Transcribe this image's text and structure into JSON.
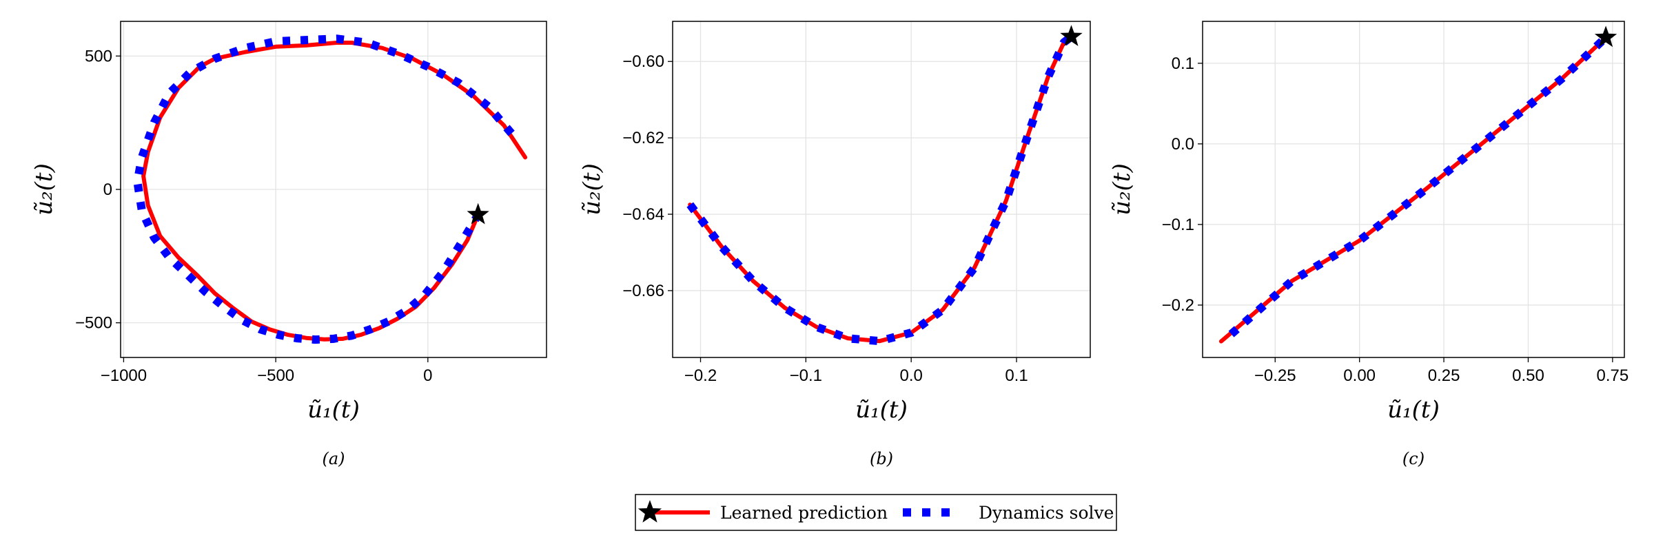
{
  "chart_data": [
    {
      "type": "line",
      "panel_label": "(a)",
      "xlabel": "ũ₁(t)",
      "ylabel": "ũ₂(t)",
      "xlim": [
        -1010,
        390
      ],
      "ylim": [
        -630,
        630
      ],
      "xticks": [
        -1000,
        -500,
        0
      ],
      "xtick_labels": [
        "−1000",
        "−500",
        "0"
      ],
      "yticks": [
        -500,
        0,
        500
      ],
      "ytick_labels": [
        "−500",
        "0",
        "500"
      ],
      "grid": true,
      "marker_start": [
        165,
        -95
      ],
      "series": [
        {
          "name": "Learned prediction",
          "color": "#ff0000",
          "style": "solid",
          "x": [
            320,
            250,
            150,
            50,
            -50,
            -150,
            -250,
            -300,
            -400,
            -500,
            -600,
            -700,
            -750,
            -820,
            -880,
            -920,
            -935,
            -920,
            -880,
            -820,
            -760,
            -700,
            -640,
            -580,
            -520,
            -460,
            -400,
            -340,
            -280,
            -220,
            -160,
            -100,
            -40,
            20,
            80,
            130,
            165
          ],
          "y": [
            120,
            240,
            350,
            430,
            490,
            530,
            550,
            550,
            540,
            535,
            515,
            490,
            460,
            380,
            270,
            140,
            50,
            -60,
            -175,
            -255,
            -320,
            -390,
            -445,
            -495,
            -525,
            -545,
            -557,
            -562,
            -560,
            -545,
            -520,
            -485,
            -440,
            -370,
            -280,
            -190,
            -95
          ]
        },
        {
          "name": "Dynamics solve",
          "color": "#0000ff",
          "style": "dotted",
          "x": [
            275,
            200,
            100,
            0,
            -100,
            -200,
            -300,
            -400,
            -500,
            -600,
            -700,
            -780,
            -850,
            -900,
            -940,
            -955,
            -940,
            -900,
            -850,
            -790,
            -730,
            -670,
            -610,
            -550,
            -490,
            -430,
            -370,
            -310,
            -250,
            -190,
            -130,
            -70,
            -10,
            50,
            110,
            165
          ],
          "y": [
            210,
            310,
            400,
            460,
            510,
            550,
            565,
            560,
            555,
            530,
            490,
            440,
            360,
            250,
            120,
            30,
            -80,
            -180,
            -255,
            -320,
            -385,
            -440,
            -490,
            -525,
            -545,
            -558,
            -563,
            -560,
            -548,
            -525,
            -495,
            -455,
            -395,
            -310,
            -200,
            -95
          ]
        }
      ]
    },
    {
      "type": "line",
      "panel_label": "(b)",
      "xlabel": "ũ₁(t)",
      "ylabel": "ũ₂(t)",
      "xlim": [
        -0.2265,
        0.17
      ],
      "ylim": [
        -0.6775,
        -0.5895
      ],
      "xticks": [
        -0.2,
        -0.1,
        0.0,
        0.1
      ],
      "xtick_labels": [
        "−0.2",
        "−0.1",
        "0.0",
        "0.1"
      ],
      "yticks": [
        -0.66,
        -0.64,
        -0.62,
        -0.6
      ],
      "ytick_labels": [
        "−0.66",
        "−0.64",
        "−0.62",
        "−0.60"
      ],
      "grid": true,
      "marker_start": [
        0.152,
        -0.5935
      ],
      "series": [
        {
          "name": "Learned prediction",
          "color": "#ff0000",
          "style": "solid",
          "x": [
            -0.21,
            -0.18,
            -0.15,
            -0.12,
            -0.09,
            -0.06,
            -0.03,
            0.0,
            0.03,
            0.06,
            0.09,
            0.11,
            0.13,
            0.145,
            0.152
          ],
          "y": [
            -0.6375,
            -0.6485,
            -0.6575,
            -0.6645,
            -0.6695,
            -0.6725,
            -0.6732,
            -0.671,
            -0.665,
            -0.654,
            -0.6365,
            -0.62,
            -0.604,
            -0.595,
            -0.5935
          ]
        },
        {
          "name": "Dynamics solve",
          "color": "#0000ff",
          "style": "dotted",
          "x": [
            -0.21,
            -0.18,
            -0.15,
            -0.12,
            -0.09,
            -0.06,
            -0.03,
            0.0,
            0.03,
            0.06,
            0.09,
            0.11,
            0.13,
            0.145,
            0.152
          ],
          "y": [
            -0.6375,
            -0.6485,
            -0.6575,
            -0.6645,
            -0.6695,
            -0.6725,
            -0.6732,
            -0.671,
            -0.665,
            -0.654,
            -0.6365,
            -0.62,
            -0.604,
            -0.595,
            -0.5935
          ]
        }
      ]
    },
    {
      "type": "line",
      "panel_label": "(c)",
      "xlabel": "ũ₁(t)",
      "ylabel": "ũ₂(t)",
      "xlim": [
        -0.465,
        0.785
      ],
      "ylim": [
        -0.265,
        0.152
      ],
      "xticks": [
        -0.25,
        0.0,
        0.25,
        0.5,
        0.75
      ],
      "xtick_labels": [
        "−0.25",
        "0.00",
        "0.25",
        "0.50",
        "0.75"
      ],
      "yticks": [
        -0.2,
        -0.1,
        0.0,
        0.1
      ],
      "ytick_labels": [
        "−0.2",
        "−0.1",
        "0.0",
        "0.1"
      ],
      "grid": true,
      "marker_start": [
        0.73,
        0.132
      ],
      "series": [
        {
          "name": "Learned prediction",
          "color": "#ff0000",
          "style": "solid",
          "x": [
            -0.41,
            -0.2,
            0.0,
            0.2,
            0.4,
            0.6,
            0.73
          ],
          "y": [
            -0.245,
            -0.17,
            -0.12,
            -0.055,
            0.013,
            0.081,
            0.132
          ]
        },
        {
          "name": "Dynamics solve",
          "color": "#0000ff",
          "style": "dotted",
          "x": [
            -0.38,
            -0.2,
            0.0,
            0.2,
            0.4,
            0.6,
            0.73
          ],
          "y": [
            -0.236,
            -0.17,
            -0.12,
            -0.055,
            0.013,
            0.081,
            0.132
          ]
        }
      ]
    }
  ],
  "legend": {
    "placement": "bottom-center",
    "entries": [
      {
        "label": "Learned prediction",
        "color": "#ff0000",
        "style": "solid",
        "marker": "star"
      },
      {
        "label": "Dynamics solve",
        "color": "#0000ff",
        "style": "dotted"
      }
    ]
  }
}
